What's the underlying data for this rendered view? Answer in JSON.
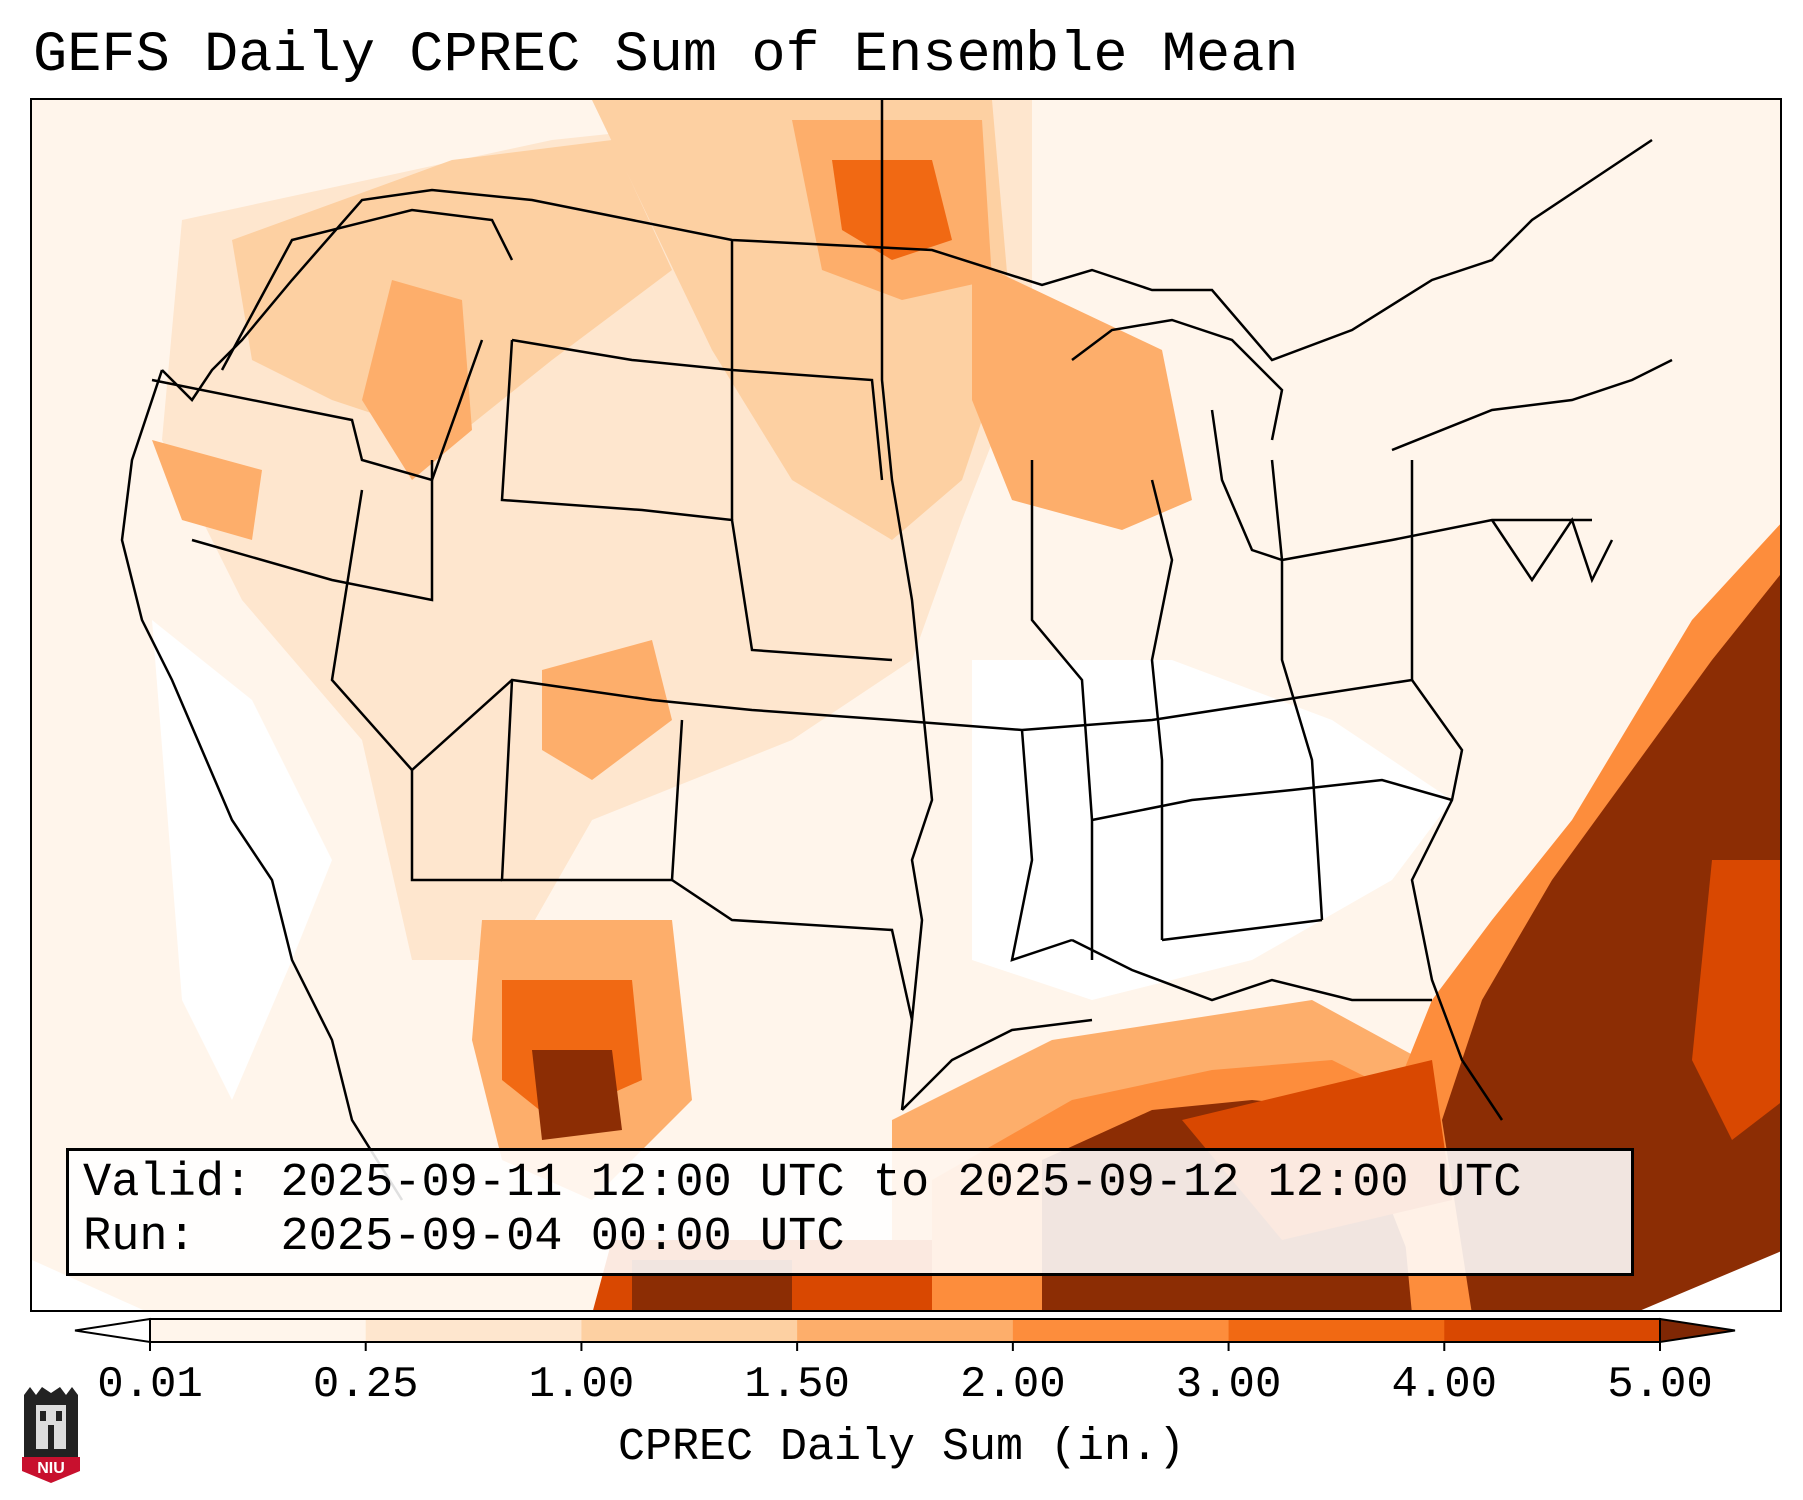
{
  "title": "GEFS Daily CPREC Sum of Ensemble Mean",
  "info": {
    "valid_label": "Valid:",
    "valid_value": "2025-09-11 12:00 UTC to 2025-09-12 12:00 UTC",
    "run_label": "Run:",
    "run_value": "2025-09-04 00:00 UTC"
  },
  "colorbar": {
    "label": "CPREC Daily Sum (in.)",
    "ticks": [
      "0.01",
      "0.25",
      "1.00",
      "1.50",
      "2.00",
      "3.00",
      "4.00",
      "5.00"
    ],
    "colors": [
      "#fff5eb",
      "#fee6ce",
      "#fdd0a2",
      "#fdae6b",
      "#fd8d3c",
      "#f16913",
      "#d94801",
      "#8c2d04"
    ],
    "under_color": "#ffffff",
    "over_color": "#7f2704"
  },
  "map": {
    "palette": {
      "p0": "#fff5eb",
      "p1": "#fee6ce",
      "p2": "#fdd0a2",
      "p3": "#fdae6b",
      "p4": "#fd8d3c",
      "p5": "#f16913",
      "p6": "#d94801",
      "p7": "#8c2d04"
    }
  },
  "logo": {
    "text": "NIU"
  }
}
